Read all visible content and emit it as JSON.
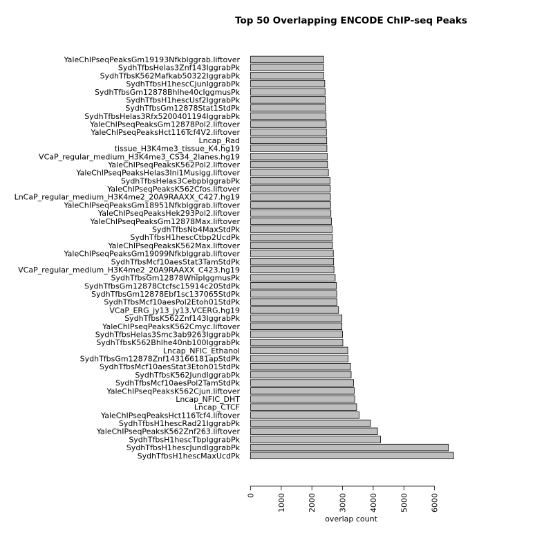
{
  "chart_data": {
    "type": "bar",
    "orientation": "horizontal",
    "title": "Top 50 Overlapping ENCODE ChIP-seq Peaks",
    "xlabel": "overlap count",
    "ylabel": "",
    "xlim": [
      0,
      6600
    ],
    "xticks": [
      0,
      1000,
      2000,
      3000,
      4000,
      5000,
      6000
    ],
    "xtick_labels": [
      "0",
      "1000",
      "2000",
      "3000",
      "4000",
      "5000",
      "6000"
    ],
    "bar_color": "#bebebe",
    "grid": false,
    "categories": [
      "YaleChIPseqPeaksGm19193Nfkblggrab.liftover",
      "SydhTfbsHelas3Znf143IggrabPk",
      "SydhTfbsK562Mafkab50322IggrabPk",
      "SydhTfbsH1hescCjunIggrabPk",
      "SydhTfbsGm12878Bhlhe40cIggmusPk",
      "SydhTfbsH1hescUsf2IggrabPk",
      "SydhTfbsGm12878Stat1StdPk",
      "SydhTfbsHelas3Rfx5200401194IggrabPk",
      "YaleChIPseqPeaksGm12878Pol2.liftover",
      "YaleChIPseqPeaksHct116Tcf4V2.liftover",
      "Lncap_Rad",
      "tissue_H3K4me3_tissue_K4.hg19",
      "VCaP_regular_medium_H3K4me3_CS34_2lanes.hg19",
      "YaleChIPseqPeaksK562Pol2.liftover",
      "YaleChIPseqPeaksHelas3Ini1Musigg.liftover",
      "SydhTfbsHelas3CebpbIggrabPk",
      "YaleChIPseqPeaksK562Cfos.liftover",
      "LnCaP_regular_medium_H3K4me2_20A9RAAXX_C427.hg19",
      "YaleChIPseqPeaksGm18951Nfkblggrab.liftover",
      "YaleChIPseqPeaksHek293Pol2.liftover",
      "YaleChIPseqPeaksGm12878Max.liftover",
      "SydhTfbsNb4MaxStdPk",
      "SydhTfbsH1hescCtbp2UcdPk",
      "YaleChIPseqPeaksK562Max.liftover",
      "YaleChIPseqPeaksGm19099Nfkblggrab.liftover",
      "SydhTfbsMcf10aesStat3TamStdPk",
      "VCaP_regular_medium_H3K4me2_20A9RAAXX_C423.hg19",
      "SydhTfbsGm12878WhipIggmusPk",
      "SydhTfbsGm12878Ctcfsc15914c20StdPk",
      "SydhTfbsGm12878Ebf1sc137065StdPk",
      "SydhTfbsMcf10aesPol2Etoh01StdPk",
      "VCaP_ERG_jy13_jy13.VCERG.hg19",
      "SydhTfbsK562Znf143IggrabPk",
      "YaleChIPseqPeaksK562Cmyc.liftover",
      "SydhTfbsHelas3Smc3ab9263IggrabPk",
      "SydhTfbsK562Bhlhe40nb100IggrabPk",
      "Lncap_NFIC_Ethanol",
      "SydhTfbsGm12878Znf143166181apStdPk",
      "SydhTfbsMcf10aesStat3Etoh01StdPk",
      "SydhTfbsK562JundIggrabPk",
      "SydhTfbsMcf10aesPol2TamStdPk",
      "YaleChIPseqPeaksK562Cjun.liftover",
      "Lncap_NFIC_DHT",
      "Lncap_CTCF",
      "YaleChIPseqPeaksHct116Tcf4.liftover",
      "SydhTfbsH1hescRad21IggrabPk",
      "YaleChIPseqPeaksK562Znf263.liftover",
      "SydhTfbsH1hescTbpIggrabPk",
      "SydhTfbsH1hescJundIggrabPk",
      "SydhTfbsH1hescMaxUcdPk"
    ],
    "values": [
      2380,
      2380,
      2385,
      2420,
      2430,
      2440,
      2450,
      2460,
      2470,
      2475,
      2485,
      2490,
      2500,
      2510,
      2540,
      2590,
      2600,
      2605,
      2610,
      2620,
      2640,
      2660,
      2665,
      2670,
      2700,
      2710,
      2720,
      2760,
      2800,
      2810,
      2820,
      2870,
      2980,
      2980,
      3000,
      3010,
      3170,
      3180,
      3260,
      3280,
      3360,
      3380,
      3400,
      3460,
      3540,
      3910,
      4140,
      4240,
      6450,
      6620
    ]
  }
}
